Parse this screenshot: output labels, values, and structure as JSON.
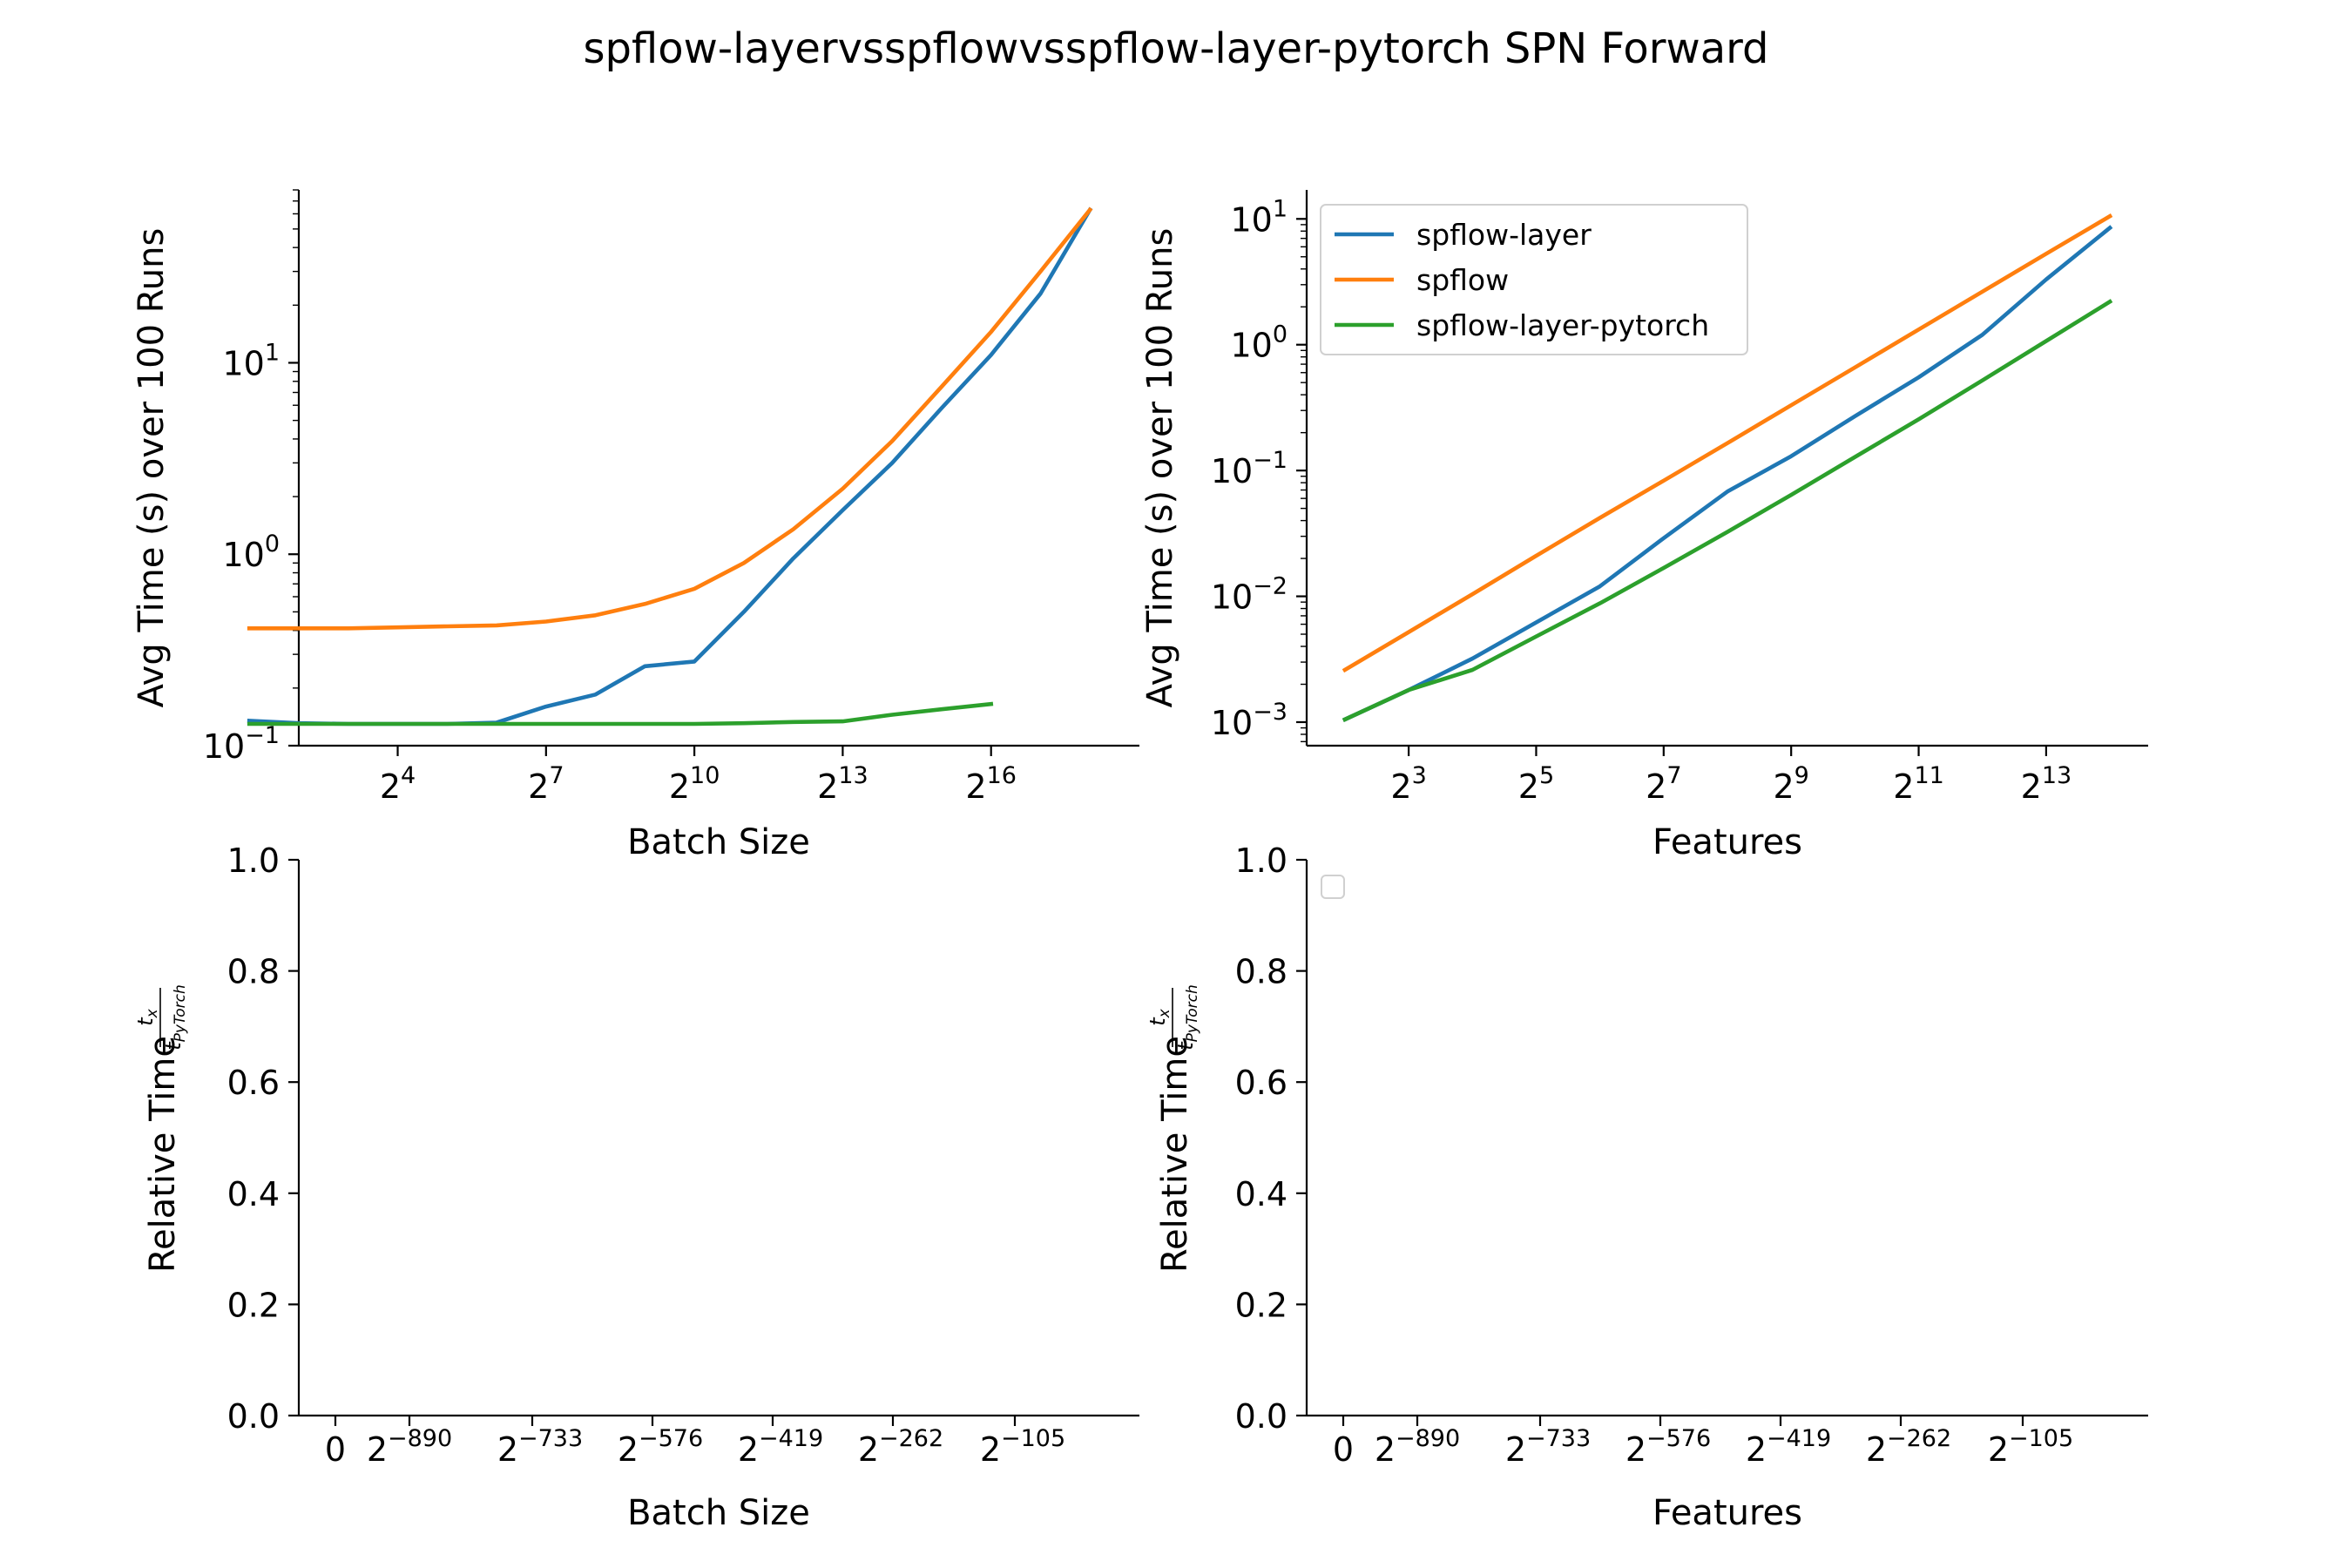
{
  "figure_title": "spflow-layervsspflowvsspflow-layer-pytorch SPN Forward",
  "chart_data": [
    {
      "type": "line",
      "panel": "top-left",
      "xlabel": "Batch Size",
      "ylabel": "Avg Time (s) over 100 Runs",
      "xscale": "log2",
      "yscale": "log10",
      "xlim": [
        2,
        19
      ],
      "ylim": [
        0.1,
        80
      ],
      "xticks": [
        4,
        7,
        10,
        13,
        16
      ],
      "xtick_labels": [
        "2^4",
        "2^7",
        "2^10",
        "2^13",
        "2^16"
      ],
      "yticks": [
        0.1,
        1,
        10
      ],
      "ytick_labels": [
        "10^-1",
        "10^0",
        "10^1"
      ],
      "grid": false,
      "series": [
        {
          "name": "spflow-layer",
          "color": "#1f77b4",
          "x": [
            1,
            2,
            3,
            4,
            5,
            6,
            7,
            8,
            9,
            10,
            11,
            12,
            13,
            14,
            15,
            16,
            17,
            18
          ],
          "y": [
            0.135,
            0.131,
            0.13,
            0.13,
            0.13,
            0.132,
            0.16,
            0.185,
            0.26,
            0.275,
            0.5,
            0.95,
            1.7,
            3.0,
            5.8,
            11.0,
            23.0,
            63.0
          ]
        },
        {
          "name": "spflow",
          "color": "#ff7f0e",
          "x": [
            1,
            2,
            3,
            4,
            5,
            6,
            7,
            8,
            9,
            10,
            11,
            12,
            13,
            14,
            15,
            16,
            17,
            18
          ],
          "y": [
            0.41,
            0.41,
            0.41,
            0.415,
            0.42,
            0.425,
            0.445,
            0.48,
            0.55,
            0.66,
            0.9,
            1.35,
            2.2,
            3.9,
            7.5,
            14.5,
            30.0,
            63.0
          ]
        },
        {
          "name": "spflow-layer-pytorch",
          "color": "#2ca02c",
          "x": [
            1,
            2,
            3,
            4,
            5,
            6,
            7,
            8,
            9,
            10,
            11,
            12,
            13,
            14,
            15,
            16
          ],
          "y": [
            0.13,
            0.13,
            0.13,
            0.13,
            0.13,
            0.13,
            0.13,
            0.13,
            0.13,
            0.13,
            0.131,
            0.133,
            0.134,
            0.145,
            0.155,
            0.165
          ]
        }
      ]
    },
    {
      "type": "line",
      "panel": "top-right",
      "xlabel": "Features",
      "ylabel": "Avg Time (s) over 100 Runs",
      "xscale": "log2",
      "yscale": "log10",
      "xlim": [
        1.4,
        14.6
      ],
      "ylim": [
        0.00065,
        17
      ],
      "xticks": [
        3,
        5,
        7,
        9,
        11,
        13
      ],
      "xtick_labels": [
        "2^3",
        "2^5",
        "2^7",
        "2^9",
        "2^11",
        "2^13"
      ],
      "yticks": [
        0.001,
        0.01,
        0.1,
        1,
        10
      ],
      "ytick_labels": [
        "10^-3",
        "10^-2",
        "10^-1",
        "10^0",
        "10^1"
      ],
      "grid": false,
      "legend": {
        "placement": "upper-left",
        "entries": [
          "spflow-layer",
          "spflow",
          "spflow-layer-pytorch"
        ]
      },
      "series": [
        {
          "name": "spflow-layer",
          "color": "#1f77b4",
          "x": [
            2,
            3,
            4,
            5,
            6,
            7,
            8,
            9,
            10,
            11,
            12,
            13,
            14
          ],
          "y": [
            0.00105,
            0.0018,
            0.0032,
            0.0062,
            0.012,
            0.029,
            0.068,
            0.13,
            0.27,
            0.55,
            1.2,
            3.3,
            8.5
          ]
        },
        {
          "name": "spflow",
          "color": "#ff7f0e",
          "x": [
            2,
            3,
            4,
            5,
            6,
            7,
            8,
            9,
            10,
            11,
            12,
            13,
            14
          ],
          "y": [
            0.0026,
            0.0052,
            0.0104,
            0.021,
            0.042,
            0.083,
            0.165,
            0.33,
            0.66,
            1.32,
            2.64,
            5.28,
            10.5
          ]
        },
        {
          "name": "spflow-layer-pytorch",
          "color": "#2ca02c",
          "x": [
            2,
            3,
            4,
            5,
            6,
            7,
            8,
            9,
            10,
            11,
            12,
            13,
            14
          ],
          "y": [
            0.00105,
            0.0018,
            0.0026,
            0.0048,
            0.0088,
            0.0168,
            0.0325,
            0.064,
            0.128,
            0.255,
            0.52,
            1.07,
            2.2
          ]
        }
      ]
    },
    {
      "type": "line",
      "panel": "bottom-left",
      "xlabel": "Batch Size",
      "ylabel": "Relative Time",
      "ylabel_fraction": {
        "numerator": "t",
        "numerator_sub": "x",
        "denominator": "t",
        "denominator_sub": "PyTorch"
      },
      "ylim": [
        0.0,
        1.0
      ],
      "yticks": [
        "0.0",
        "0.2",
        "0.4",
        "0.6",
        "0.8",
        "1.0"
      ],
      "xtick_labels": [
        {
          "base": "0",
          "exp": ""
        },
        {
          "base": "2",
          "exp": "−890"
        },
        {
          "base": "2",
          "exp": "−733"
        },
        {
          "base": "2",
          "exp": "−576"
        },
        {
          "base": "2",
          "exp": "−419"
        },
        {
          "base": "2",
          "exp": "−262"
        },
        {
          "base": "2",
          "exp": "−105"
        }
      ],
      "grid": false,
      "series": []
    },
    {
      "type": "line",
      "panel": "bottom-right",
      "xlabel": "Features",
      "ylabel": "Relative Time",
      "ylabel_fraction": {
        "numerator": "t",
        "numerator_sub": "x",
        "denominator": "t",
        "denominator_sub": "PyTorch"
      },
      "ylim": [
        0.0,
        1.0
      ],
      "yticks": [
        "0.0",
        "0.2",
        "0.4",
        "0.6",
        "0.8",
        "1.0"
      ],
      "xtick_labels": [
        {
          "base": "0",
          "exp": ""
        },
        {
          "base": "2",
          "exp": "−890"
        },
        {
          "base": "2",
          "exp": "−733"
        },
        {
          "base": "2",
          "exp": "−576"
        },
        {
          "base": "2",
          "exp": "−419"
        },
        {
          "base": "2",
          "exp": "−262"
        },
        {
          "base": "2",
          "exp": "−105"
        }
      ],
      "grid": false,
      "legend": {
        "placement": "upper-left",
        "entries": []
      },
      "series": []
    }
  ]
}
